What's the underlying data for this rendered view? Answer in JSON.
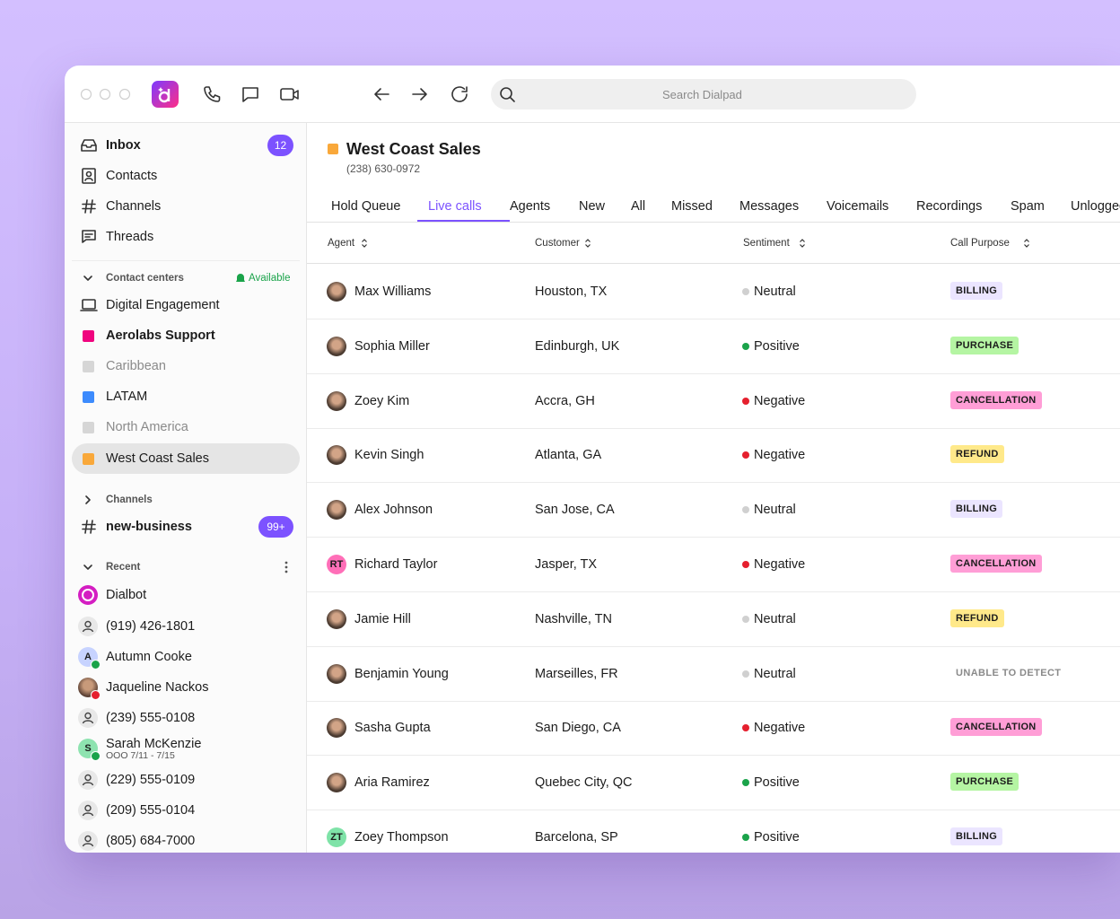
{
  "toolbar": {
    "search_placeholder": "Search Dialpad"
  },
  "sidebar": {
    "nav": [
      {
        "label": "Inbox",
        "badge": 12,
        "bold": true,
        "icon": "inbox"
      },
      {
        "label": "Contacts",
        "icon": "contacts"
      },
      {
        "label": "Channels",
        "icon": "hash"
      },
      {
        "label": "Threads",
        "icon": "threads"
      }
    ],
    "contact_centers": {
      "label": "Contact centers",
      "status": "Available",
      "items": [
        {
          "label": "Digital Engagement",
          "icon": "laptop"
        },
        {
          "label": "Aerolabs Support",
          "color": "#f0047f",
          "bold": true
        },
        {
          "label": "Caribbean",
          "color": "#d6d6d6",
          "muted": true
        },
        {
          "label": "LATAM",
          "color": "#3d8bfd"
        },
        {
          "label": "North America",
          "color": "#d6d6d6",
          "muted": true
        },
        {
          "label": "West Coast Sales",
          "color": "#f9a83a",
          "selected": true
        }
      ]
    },
    "channels": {
      "label": "Channels",
      "items": [
        {
          "label": "new-business",
          "badge": "99+",
          "bold": true
        }
      ]
    },
    "recent": {
      "label": "Recent",
      "items": [
        {
          "label": "Dialbot",
          "avatar": "bot"
        },
        {
          "label": "(919) 426-1801",
          "avatar": "person"
        },
        {
          "label": "Autumn Cooke",
          "avatar": "initials",
          "initials": "A",
          "avatar_color": "#c7d3ff",
          "presence": "#1aa34a"
        },
        {
          "label": "Jaqueline Nackos",
          "avatar": "photo",
          "presence": "#e5202e"
        },
        {
          "label": "(239) 555-0108",
          "avatar": "person"
        },
        {
          "label": "Sarah McKenzie",
          "sub": "OOO 7/11 - 7/15",
          "avatar": "initials",
          "initials": "S",
          "avatar_color": "#8ee3b0",
          "presence": "#1aa34a"
        },
        {
          "label": "(229) 555-0109",
          "avatar": "person"
        },
        {
          "label": "(209) 555-0104",
          "avatar": "person"
        },
        {
          "label": "(805) 684-7000",
          "avatar": "person"
        }
      ]
    }
  },
  "main": {
    "title": "West Coast Sales",
    "title_color": "#f9a83a",
    "phone": "(238) 630-0972",
    "tabs": [
      "Hold Queue",
      "Live calls",
      "Agents",
      "New",
      "All",
      "Missed",
      "Messages",
      "Voicemails",
      "Recordings",
      "Spam",
      "Unlogged"
    ],
    "active_tab": 1,
    "columns": [
      "Agent",
      "Customer",
      "Sentiment",
      "Call Purpose"
    ],
    "sentiment_colors": {
      "Neutral": "#d0d0d0",
      "Positive": "#1aa34a",
      "Negative": "#e5202e"
    },
    "purpose_colors": {
      "BILLING": "#ebe5ff",
      "PURCHASE": "#b5f5a3",
      "CANCELLATION": "#ff9ed6",
      "REFUND": "#ffe98a",
      "UNABLE TO DETECT": null
    },
    "rows": [
      {
        "agent": "Max Williams",
        "customer": "Houston, TX",
        "sentiment": "Neutral",
        "purpose": "BILLING"
      },
      {
        "agent": "Sophia Miller",
        "customer": "Edinburgh, UK",
        "sentiment": "Positive",
        "purpose": "PURCHASE"
      },
      {
        "agent": "Zoey Kim",
        "customer": "Accra, GH",
        "sentiment": "Negative",
        "purpose": "CANCELLATION"
      },
      {
        "agent": "Kevin Singh",
        "customer": "Atlanta, GA",
        "sentiment": "Negative",
        "purpose": "REFUND"
      },
      {
        "agent": "Alex Johnson",
        "customer": "San Jose, CA",
        "sentiment": "Neutral",
        "purpose": "BILLING"
      },
      {
        "agent": "Richard Taylor",
        "initials": "RT",
        "avatar_color": "#ff6fb8",
        "customer": "Jasper, TX",
        "sentiment": "Negative",
        "purpose": "CANCELLATION"
      },
      {
        "agent": "Jamie Hill",
        "customer": "Nashville, TN",
        "sentiment": "Neutral",
        "purpose": "REFUND"
      },
      {
        "agent": "Benjamin Young",
        "customer": "Marseilles, FR",
        "sentiment": "Neutral",
        "purpose": "UNABLE TO DETECT"
      },
      {
        "agent": "Sasha Gupta",
        "customer": "San Diego, CA",
        "sentiment": "Negative",
        "purpose": "CANCELLATION"
      },
      {
        "agent": "Aria Ramirez",
        "customer": "Quebec City, QC",
        "sentiment": "Positive",
        "purpose": "PURCHASE"
      },
      {
        "agent": "Zoey Thompson",
        "initials": "ZT",
        "avatar_color": "#7fe3a8",
        "customer": "Barcelona, SP",
        "sentiment": "Positive",
        "purpose": "BILLING"
      }
    ]
  }
}
